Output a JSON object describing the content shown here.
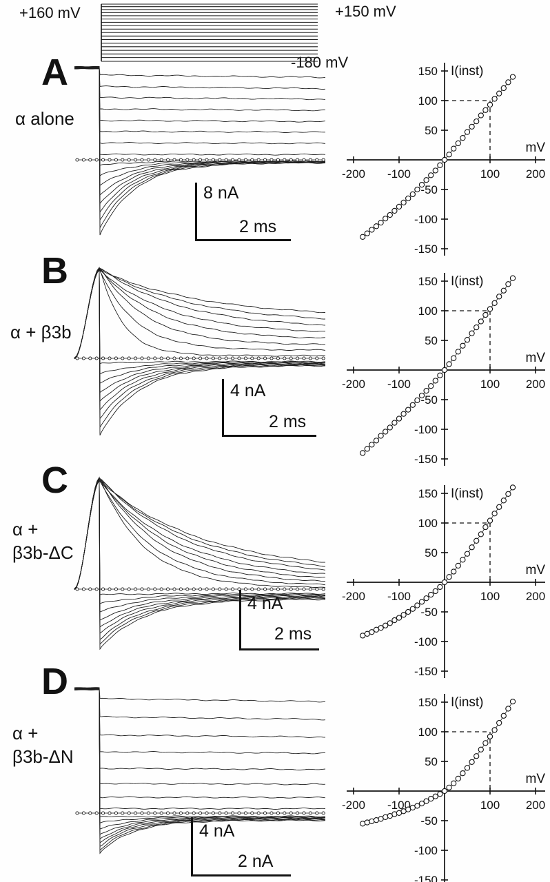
{
  "protocol": {
    "left_label": "+160 mV",
    "right_label": "+150 mV",
    "bottom_label": "-180 mV",
    "n_steps": 18
  },
  "panels": [
    {
      "letter": "A",
      "condition_lines": [
        "α alone"
      ],
      "scale_bar_vertical": "8 nA",
      "scale_bar_horizontal": "2 ms",
      "trace_model": {
        "style": "tail",
        "pre_level": 152,
        "sustain": 0.97,
        "tail_ss": -5,
        "tau_neg": 50,
        "voltages": [
          150,
          130,
          110,
          90,
          70,
          50,
          30,
          10,
          -10,
          -30,
          -50,
          -70,
          -90,
          -110,
          -130,
          -150,
          -170
        ]
      }
    },
    {
      "letter": "B",
      "condition_lines": [
        "α + β3b"
      ],
      "scale_bar_vertical": "4 nA",
      "scale_bar_horizontal": "2 ms",
      "trace_model": {
        "style": "peak",
        "sustain": 0.45,
        "tail_ss": -13,
        "tau_neg": 55,
        "tau_pos_base": 25,
        "tau_pos_slope": 0.85,
        "voltages": [
          150,
          130,
          110,
          90,
          70,
          50,
          30,
          10,
          -10,
          -30,
          -50,
          -70,
          -90,
          -110,
          -130,
          -150,
          -170
        ]
      }
    },
    {
      "letter": "C",
      "condition_lines": [
        "α +",
        "β3b-ΔC"
      ],
      "scale_bar_vertical": "4 nA",
      "scale_bar_horizontal": "2 ms",
      "trace_model": {
        "style": "peak",
        "sustain": 0.15,
        "tail_ss": -15,
        "tau_neg": 62,
        "tau_pos_base": 60,
        "tau_pos_slope": 0.6,
        "voltages": [
          150,
          130,
          110,
          90,
          70,
          50,
          30,
          10,
          -10,
          -30,
          -50,
          -70,
          -90,
          -110,
          -130,
          -150,
          -170
        ]
      }
    },
    {
      "letter": "D",
      "condition_lines": [
        "α +",
        "β3b-ΔN"
      ],
      "scale_bar_vertical": "4 nA",
      "scale_bar_horizontal": "2 nA",
      "trace_model": {
        "style": "tail",
        "pre_level": 164,
        "sustain": 1.0,
        "tail_ss": -10,
        "tau_neg": 46,
        "voltages": [
          150,
          130,
          110,
          90,
          70,
          50,
          30,
          10,
          -10,
          -30,
          -50,
          -70,
          -90,
          -110,
          -130,
          -150,
          -170
        ]
      }
    }
  ],
  "chart_data": [
    {
      "type": "scatter",
      "panel": "A",
      "condition": "α alone",
      "title": "I(inst)",
      "xlabel": "mV",
      "ylabel": "",
      "xlim": [
        -200,
        200
      ],
      "ylim": [
        -150,
        150
      ],
      "xticks": [
        -200,
        -100,
        100,
        200
      ],
      "yticks": [
        150,
        100,
        50,
        -50,
        -100,
        -150
      ],
      "dashed_guide": {
        "x": 100,
        "y": 100
      },
      "x": [
        -180,
        -170,
        -160,
        -150,
        -140,
        -130,
        -120,
        -110,
        -100,
        -90,
        -80,
        -70,
        -60,
        -50,
        -40,
        -30,
        -20,
        -10,
        0,
        10,
        20,
        30,
        40,
        50,
        60,
        70,
        80,
        90,
        100,
        110,
        120,
        130,
        140,
        150
      ],
      "y": [
        -130,
        -124,
        -118,
        -112,
        -106,
        -99,
        -93,
        -86,
        -79,
        -72,
        -65,
        -58,
        -50,
        -42,
        -34,
        -26,
        -18,
        -9,
        0,
        9,
        19,
        28,
        37,
        47,
        56,
        65,
        75,
        84,
        93,
        103,
        112,
        121,
        131,
        140
      ]
    },
    {
      "type": "scatter",
      "panel": "B",
      "condition": "α + β3b",
      "title": "I(inst)",
      "xlabel": "mV",
      "ylabel": "",
      "xlim": [
        -200,
        200
      ],
      "ylim": [
        -150,
        150
      ],
      "xticks": [
        -200,
        -100,
        100,
        200
      ],
      "yticks": [
        150,
        100,
        50,
        -50,
        -100,
        -150
      ],
      "dashed_guide": {
        "x": 100,
        "y": 100
      },
      "x": [
        -180,
        -170,
        -160,
        -150,
        -140,
        -130,
        -120,
        -110,
        -100,
        -90,
        -80,
        -70,
        -60,
        -50,
        -40,
        -30,
        -20,
        -10,
        0,
        10,
        20,
        30,
        40,
        50,
        60,
        70,
        80,
        90,
        100,
        110,
        120,
        130,
        140,
        150
      ],
      "y": [
        -140,
        -133,
        -126,
        -119,
        -111,
        -104,
        -97,
        -89,
        -82,
        -74,
        -67,
        -59,
        -51,
        -43,
        -35,
        -27,
        -18,
        -9,
        0,
        10,
        20,
        31,
        41,
        51,
        62,
        72,
        82,
        93,
        103,
        113,
        124,
        134,
        145,
        155
      ]
    },
    {
      "type": "scatter",
      "panel": "C",
      "condition": "α + β3b-ΔC",
      "title": "I(inst)",
      "xlabel": "mV",
      "ylabel": "",
      "xlim": [
        -200,
        200
      ],
      "ylim": [
        -150,
        150
      ],
      "xticks": [
        -200,
        -100,
        100,
        200
      ],
      "yticks": [
        150,
        100,
        50,
        -50,
        -100,
        -150
      ],
      "dashed_guide": {
        "x": 100,
        "y": 100
      },
      "x": [
        -180,
        -170,
        -160,
        -150,
        -140,
        -130,
        -120,
        -110,
        -100,
        -90,
        -80,
        -70,
        -60,
        -50,
        -40,
        -30,
        -20,
        -10,
        0,
        10,
        20,
        30,
        40,
        50,
        60,
        70,
        80,
        90,
        100,
        110,
        120,
        130,
        140,
        150
      ],
      "y": [
        -90,
        -87,
        -84,
        -80,
        -77,
        -73,
        -69,
        -64,
        -60,
        -55,
        -50,
        -45,
        -39,
        -33,
        -27,
        -21,
        -15,
        -8,
        0,
        9,
        18,
        28,
        38,
        48,
        59,
        70,
        81,
        93,
        104,
        116,
        127,
        138,
        149,
        160
      ]
    },
    {
      "type": "scatter",
      "panel": "D",
      "condition": "α + β3b-ΔN",
      "title": "I(inst)",
      "xlabel": "mV",
      "ylabel": "",
      "xlim": [
        -200,
        200
      ],
      "ylim": [
        -150,
        150
      ],
      "xticks": [
        -200,
        -100,
        100,
        200
      ],
      "yticks": [
        150,
        100,
        50,
        -50,
        -100,
        -150
      ],
      "dashed_guide": {
        "x": 100,
        "y": 100
      },
      "x": [
        -180,
        -170,
        -160,
        -150,
        -140,
        -130,
        -120,
        -110,
        -100,
        -90,
        -80,
        -70,
        -60,
        -50,
        -40,
        -30,
        -20,
        -10,
        0,
        10,
        20,
        30,
        40,
        50,
        60,
        70,
        80,
        90,
        100,
        110,
        120,
        130,
        140,
        150
      ],
      "y": [
        -55,
        -53,
        -51,
        -49,
        -47,
        -44,
        -42,
        -39,
        -37,
        -34,
        -31,
        -28,
        -25,
        -21,
        -17,
        -13,
        -9,
        -5,
        0,
        6,
        13,
        21,
        30,
        39,
        49,
        59,
        70,
        81,
        92,
        103,
        115,
        127,
        139,
        151
      ]
    }
  ]
}
